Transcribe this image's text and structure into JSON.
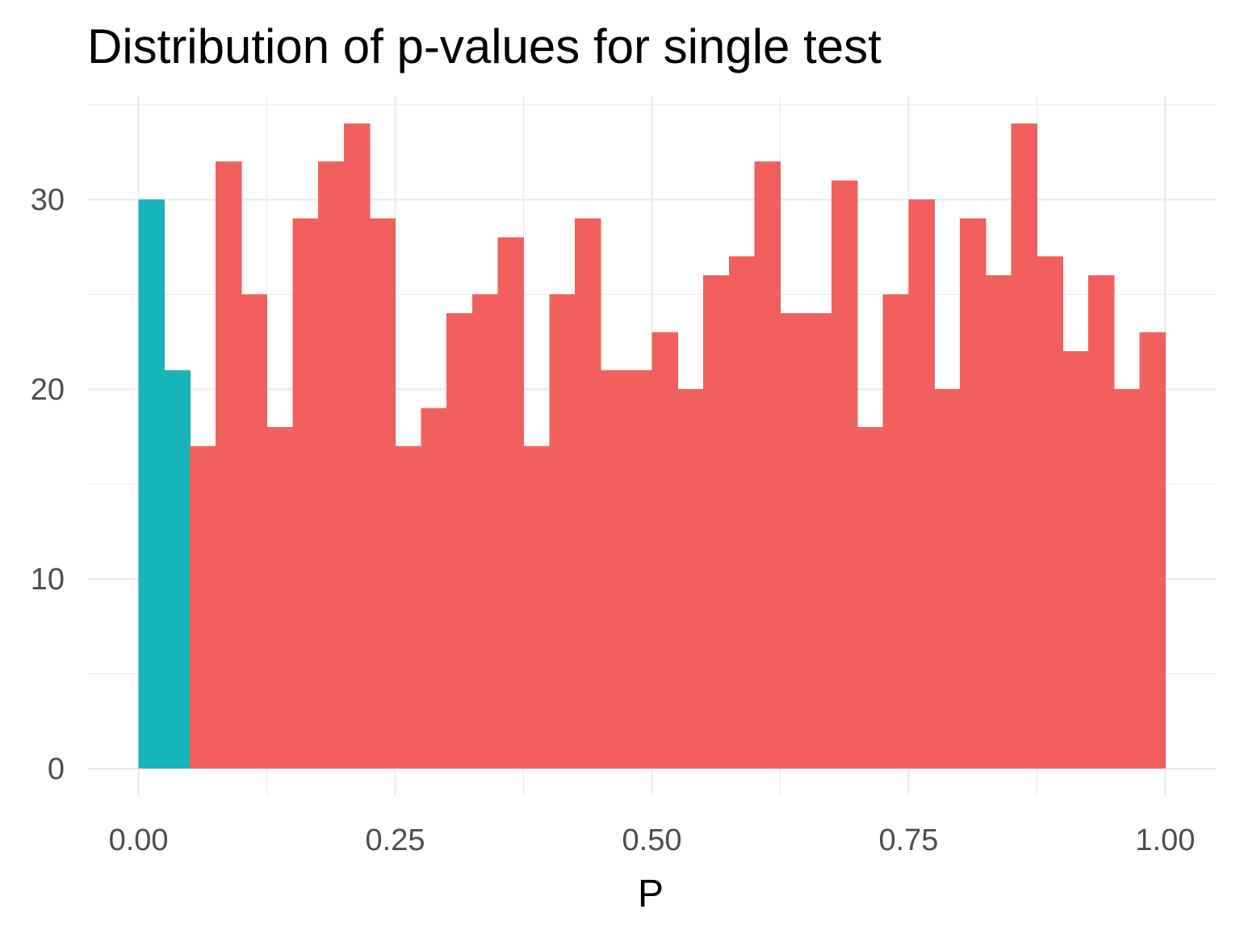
{
  "chart_data": {
    "type": "bar",
    "title": "Distribution of p-values for single test",
    "xlabel": "P",
    "ylabel": "",
    "xlim": [
      -0.05,
      1.05
    ],
    "ylim": [
      -1.4,
      35.5
    ],
    "x_ticks": [
      0.0,
      0.25,
      0.5,
      0.75,
      1.0
    ],
    "x_tick_labels": [
      "0.00",
      "0.25",
      "0.50",
      "0.75",
      "1.00"
    ],
    "y_ticks": [
      0,
      10,
      20,
      30
    ],
    "y_tick_labels": [
      "0",
      "10",
      "20",
      "30"
    ],
    "grid": true,
    "legend": "none",
    "bin_width": 0.025,
    "series": [
      {
        "color": "#19B4B8",
        "bins": [
          {
            "x0": 0.0,
            "x1": 0.025,
            "count": 30
          },
          {
            "x0": 0.025,
            "x1": 0.05,
            "count": 21
          }
        ]
      },
      {
        "color": "#F2605D",
        "bins": [
          {
            "x0": 0.05,
            "x1": 0.075,
            "count": 17
          },
          {
            "x0": 0.075,
            "x1": 0.1,
            "count": 32
          },
          {
            "x0": 0.1,
            "x1": 0.125,
            "count": 25
          },
          {
            "x0": 0.125,
            "x1": 0.15,
            "count": 18
          },
          {
            "x0": 0.15,
            "x1": 0.175,
            "count": 29
          },
          {
            "x0": 0.175,
            "x1": 0.2,
            "count": 32
          },
          {
            "x0": 0.2,
            "x1": 0.225,
            "count": 34
          },
          {
            "x0": 0.225,
            "x1": 0.25,
            "count": 29
          },
          {
            "x0": 0.25,
            "x1": 0.275,
            "count": 17
          },
          {
            "x0": 0.275,
            "x1": 0.3,
            "count": 19
          },
          {
            "x0": 0.3,
            "x1": 0.325,
            "count": 24
          },
          {
            "x0": 0.325,
            "x1": 0.35,
            "count": 25
          },
          {
            "x0": 0.35,
            "x1": 0.375,
            "count": 28
          },
          {
            "x0": 0.375,
            "x1": 0.4,
            "count": 17
          },
          {
            "x0": 0.4,
            "x1": 0.425,
            "count": 25
          },
          {
            "x0": 0.425,
            "x1": 0.45,
            "count": 29
          },
          {
            "x0": 0.45,
            "x1": 0.475,
            "count": 21
          },
          {
            "x0": 0.475,
            "x1": 0.5,
            "count": 21
          },
          {
            "x0": 0.5,
            "x1": 0.525,
            "count": 23
          },
          {
            "x0": 0.525,
            "x1": 0.55,
            "count": 20
          },
          {
            "x0": 0.55,
            "x1": 0.575,
            "count": 26
          },
          {
            "x0": 0.575,
            "x1": 0.6,
            "count": 27
          },
          {
            "x0": 0.6,
            "x1": 0.625,
            "count": 32
          },
          {
            "x0": 0.625,
            "x1": 0.65,
            "count": 24
          },
          {
            "x0": 0.65,
            "x1": 0.675,
            "count": 24
          },
          {
            "x0": 0.675,
            "x1": 0.7,
            "count": 31
          },
          {
            "x0": 0.7,
            "x1": 0.725,
            "count": 18
          },
          {
            "x0": 0.725,
            "x1": 0.75,
            "count": 25
          },
          {
            "x0": 0.75,
            "x1": 0.775,
            "count": 30
          },
          {
            "x0": 0.775,
            "x1": 0.8,
            "count": 20
          },
          {
            "x0": 0.8,
            "x1": 0.825,
            "count": 29
          },
          {
            "x0": 0.825,
            "x1": 0.85,
            "count": 26
          },
          {
            "x0": 0.85,
            "x1": 0.875,
            "count": 34
          },
          {
            "x0": 0.875,
            "x1": 0.9,
            "count": 27
          },
          {
            "x0": 0.9,
            "x1": 0.925,
            "count": 22
          },
          {
            "x0": 0.925,
            "x1": 0.95,
            "count": 26
          },
          {
            "x0": 0.95,
            "x1": 0.975,
            "count": 20
          },
          {
            "x0": 0.975,
            "x1": 1.0,
            "count": 23
          }
        ]
      }
    ]
  }
}
